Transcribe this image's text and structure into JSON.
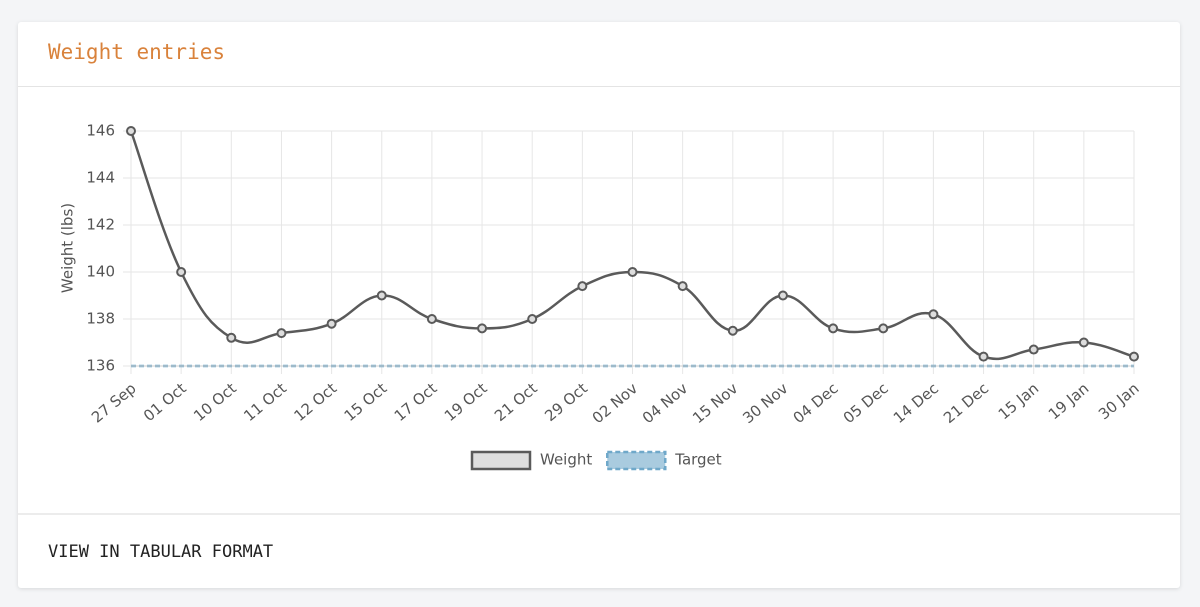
{
  "header": {
    "title": "Weight entries"
  },
  "chart_data": {
    "type": "line",
    "y_label": "Weight (lbs)",
    "categories": [
      "27 Sep",
      "01 Oct",
      "10 Oct",
      "11 Oct",
      "12 Oct",
      "15 Oct",
      "17 Oct",
      "19 Oct",
      "21 Oct",
      "29 Oct",
      "02 Nov",
      "04 Nov",
      "15 Nov",
      "30 Nov",
      "04 Dec",
      "05 Dec",
      "14 Dec",
      "21 Dec",
      "15 Jan",
      "19 Jan",
      "30 Jan"
    ],
    "series": [
      {
        "name": "Weight",
        "color": "#5a5a5a",
        "dashed": false,
        "markers": true,
        "values": [
          146,
          140,
          137.2,
          137.4,
          137.8,
          139,
          138,
          137.6,
          138,
          139.4,
          140,
          139.4,
          137.5,
          139,
          137.6,
          137.6,
          138.2,
          136.4,
          136.7,
          137,
          136.4
        ]
      },
      {
        "name": "Target",
        "color": "#6fa8c9",
        "dashed": true,
        "markers": false,
        "values": [
          136,
          136,
          136,
          136,
          136,
          136,
          136,
          136,
          136,
          136,
          136,
          136,
          136,
          136,
          136,
          136,
          136,
          136,
          136,
          136,
          136
        ]
      }
    ],
    "ylim": [
      136,
      146
    ],
    "yticks": [
      136,
      138,
      140,
      142,
      144,
      146
    ],
    "grid": true,
    "legend": "bottom"
  },
  "footer": {
    "link": "VIEW IN TABULAR FORMAT"
  }
}
